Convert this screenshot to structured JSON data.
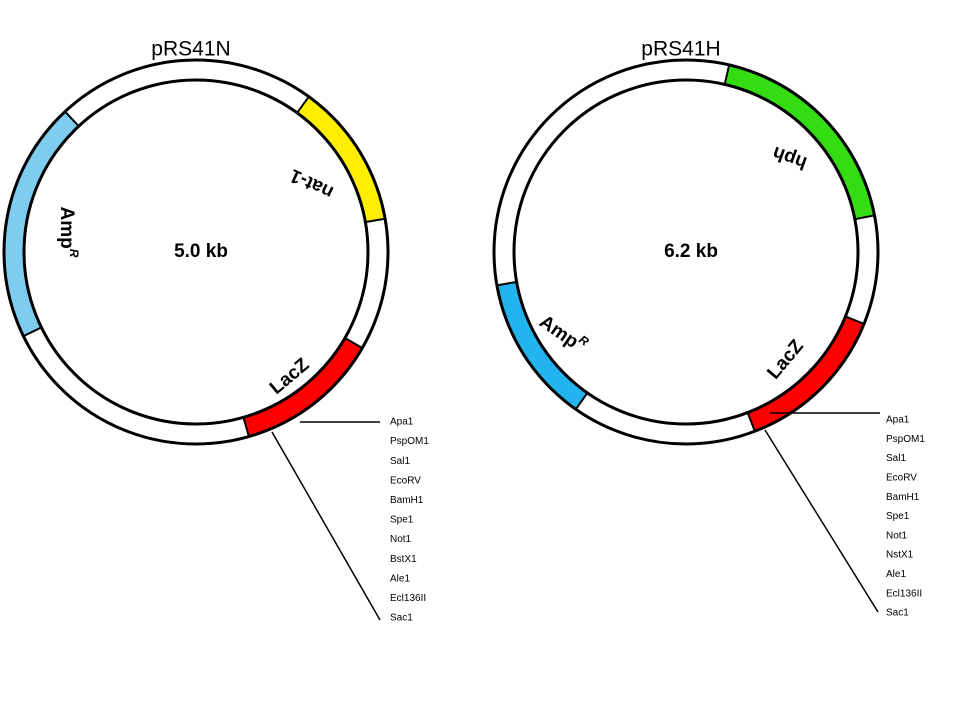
{
  "plasmids": [
    {
      "name": "pRS41N",
      "size": "5.0 kb",
      "features": [
        {
          "label": "Amp",
          "sup": "R",
          "color": "#7ecdf0"
        },
        {
          "label": "nat-1",
          "color": "#ffee00"
        },
        {
          "label": "LacZ",
          "color": "#ff0000"
        }
      ],
      "sites": [
        "Apa1",
        "PspOM1",
        "Sal1",
        "EcoRV",
        "BamH1",
        "Spe1",
        "Not1",
        "BstX1",
        "Ale1",
        "Ecl136II",
        "Sac1"
      ]
    },
    {
      "name": "pRS41H",
      "size": "6.2 kb",
      "features": [
        {
          "label": "Amp",
          "sup": "R",
          "color": "#22b4ee"
        },
        {
          "label": "hph",
          "color": "#33dd11"
        },
        {
          "label": "LacZ",
          "color": "#ff0000"
        }
      ],
      "sites": [
        "Apa1",
        "PspOM1",
        "Sal1",
        "EcoRV",
        "BamH1",
        "Spe1",
        "Not1",
        "NstX1",
        "Ale1",
        "Ecl136II",
        "Sac1"
      ]
    }
  ]
}
